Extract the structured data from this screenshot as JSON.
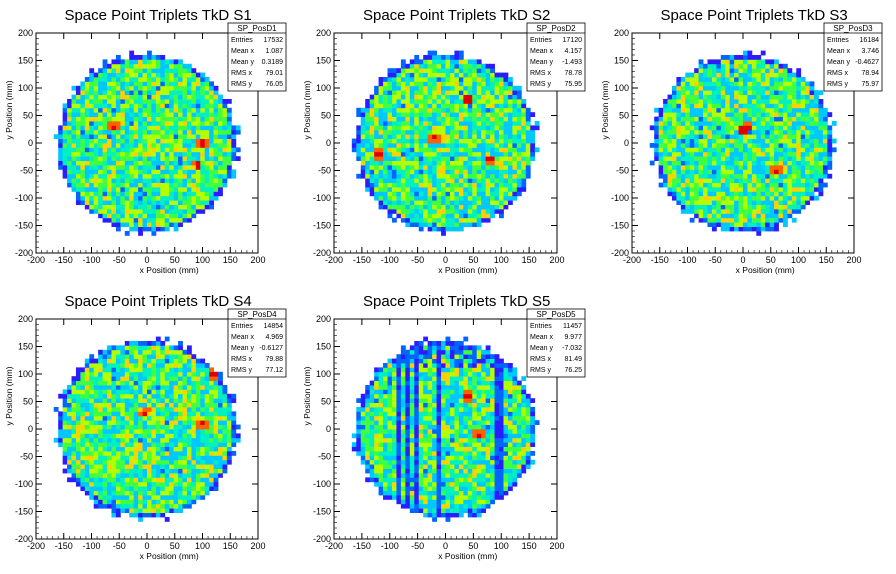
{
  "chart_data": [
    {
      "type": "heatmap",
      "title": "Space Point Triplets TkD S1",
      "xlabel": "x Position (mm)",
      "ylabel": "y Position (mm)",
      "xlim": [
        -200,
        200
      ],
      "ylim": [
        -200,
        200
      ],
      "xticks": [
        "-200",
        "-150",
        "-100",
        "-50",
        "0",
        "50",
        "100",
        "150",
        "200"
      ],
      "yticks": [
        "-200",
        "-150",
        "-100",
        "-50",
        "0",
        "50",
        "100",
        "150",
        "200"
      ],
      "radius": 160,
      "hot": [
        [
          100,
          0
        ],
        [
          -60,
          30
        ],
        [
          90,
          -40
        ]
      ],
      "stats": {
        "name": "SP_PosD1",
        "rows": [
          [
            "Entries",
            "17532"
          ],
          [
            "Mean x",
            "1.087"
          ],
          [
            "Mean y",
            "0.3189"
          ],
          [
            "RMS x",
            "79.01"
          ],
          [
            "RMS y",
            "76.05"
          ]
        ]
      }
    },
    {
      "type": "heatmap",
      "title": "Space Point Triplets TkD S2",
      "xlabel": "x Position (mm)",
      "ylabel": "y Position (mm)",
      "xlim": [
        -200,
        200
      ],
      "ylim": [
        -200,
        200
      ],
      "xticks": [
        "-200",
        "-150",
        "-100",
        "-50",
        "0",
        "50",
        "100",
        "150",
        "200"
      ],
      "yticks": [
        "-200",
        "-150",
        "-100",
        "-50",
        "0",
        "50",
        "100",
        "150",
        "200"
      ],
      "radius": 160,
      "hot": [
        [
          40,
          80
        ],
        [
          -20,
          10
        ],
        [
          80,
          -30
        ],
        [
          -120,
          -20
        ]
      ],
      "stats": {
        "name": "SP_PosD2",
        "rows": [
          [
            "Entries",
            "17120"
          ],
          [
            "Mean x",
            "4.157"
          ],
          [
            "Mean y",
            "-1.493"
          ],
          [
            "RMS x",
            "78.78"
          ],
          [
            "RMS y",
            "75.95"
          ]
        ]
      }
    },
    {
      "type": "heatmap",
      "title": "Space Point Triplets TkD S3",
      "xlabel": "x Position (mm)",
      "ylabel": "y Position (mm)",
      "xlim": [
        -200,
        200
      ],
      "ylim": [
        -200,
        200
      ],
      "xticks": [
        "-200",
        "-150",
        "-100",
        "-50",
        "0",
        "50",
        "100",
        "150",
        "200"
      ],
      "yticks": [
        "-200",
        "-150",
        "-100",
        "-50",
        "0",
        "50",
        "100",
        "150",
        "200"
      ],
      "radius": 160,
      "hot": [
        [
          0,
          25
        ],
        [
          10,
          30
        ],
        [
          60,
          -50
        ]
      ],
      "stats": {
        "name": "SP_PosD3",
        "rows": [
          [
            "Entries",
            "16184"
          ],
          [
            "Mean x",
            "3.746"
          ],
          [
            "Mean y",
            "-0.4627"
          ],
          [
            "RMS x",
            "78.94"
          ],
          [
            "RMS y",
            "75.97"
          ]
        ]
      }
    },
    {
      "type": "heatmap",
      "title": "Space Point Triplets TkD S4",
      "xlabel": "x Position (mm)",
      "ylabel": "y Position (mm)",
      "xlim": [
        -200,
        200
      ],
      "ylim": [
        -200,
        200
      ],
      "xticks": [
        "-200",
        "-150",
        "-100",
        "-50",
        "0",
        "50",
        "100",
        "150",
        "200"
      ],
      "yticks": [
        "-200",
        "-150",
        "-100",
        "-50",
        "0",
        "50",
        "100",
        "150",
        "200"
      ],
      "radius": 160,
      "hot": [
        [
          -5,
          30
        ],
        [
          100,
          10
        ],
        [
          120,
          100
        ]
      ],
      "stats": {
        "name": "SP_PosD4",
        "rows": [
          [
            "Entries",
            "14854"
          ],
          [
            "Mean x",
            "4.969"
          ],
          [
            "Mean y",
            "-0.6127"
          ],
          [
            "RMS x",
            "79.88"
          ],
          [
            "RMS y",
            "77.12"
          ]
        ]
      }
    },
    {
      "type": "heatmap",
      "title": "Space Point Triplets TkD S5",
      "xlabel": "x Position (mm)",
      "ylabel": "y Position (mm)",
      "xlim": [
        -200,
        200
      ],
      "ylim": [
        -200,
        200
      ],
      "xticks": [
        "-200",
        "-150",
        "-100",
        "-50",
        "0",
        "50",
        "100",
        "150",
        "200"
      ],
      "yticks": [
        "-200",
        "-150",
        "-100",
        "-50",
        "0",
        "50",
        "100",
        "150",
        "200"
      ],
      "radius": 160,
      "hot": [
        [
          60,
          -10
        ],
        [
          40,
          60
        ]
      ],
      "stripes": true,
      "stats": {
        "name": "SP_PosD5",
        "rows": [
          [
            "Entries",
            "11457"
          ],
          [
            "Mean x",
            "9.977"
          ],
          [
            "Mean y",
            "-7.032"
          ],
          [
            "RMS x",
            "81.49"
          ],
          [
            "RMS y",
            "76.25"
          ]
        ]
      }
    }
  ],
  "palette": [
    "#2d1cff",
    "#0066ff",
    "#00c8ff",
    "#00f0c0",
    "#40ff40",
    "#b4ff00",
    "#ffd000",
    "#ff6000",
    "#e00000"
  ]
}
